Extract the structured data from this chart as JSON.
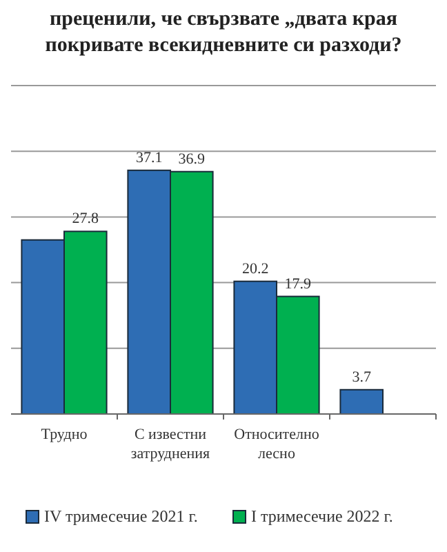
{
  "chart_data": {
    "type": "bar",
    "title": "преценили, че свързвате „двата края\nпокривате всекидневните си разходи?",
    "categories": [
      "Трудно",
      "С известни затруднения",
      "Относително лесно",
      null
    ],
    "series": [
      {
        "name": "IV тримесечие 2021 г.",
        "color": "#2e6db4",
        "values": [
          26.5,
          37.1,
          20.2,
          3.7
        ],
        "value_labels": [
          null,
          "37.1",
          "20.2",
          "3.7"
        ]
      },
      {
        "name": "I тримесечие 2022 г.",
        "color": "#00b050",
        "values": [
          27.8,
          36.9,
          17.9,
          null
        ],
        "value_labels": [
          "27.8",
          "36.9",
          "17.9",
          null
        ]
      }
    ],
    "ylim": [
      0,
      50
    ],
    "yticks": [
      {
        "value": 0,
        "label": null
      },
      {
        "value": 10,
        "label": null
      },
      {
        "value": 20,
        "label": null
      },
      {
        "value": 30,
        "label": null
      },
      {
        "value": 40,
        "label": null
      },
      {
        "value": 50,
        "label": null
      }
    ],
    "grid": "y",
    "legend": "bottom",
    "tick_labels": "x"
  }
}
